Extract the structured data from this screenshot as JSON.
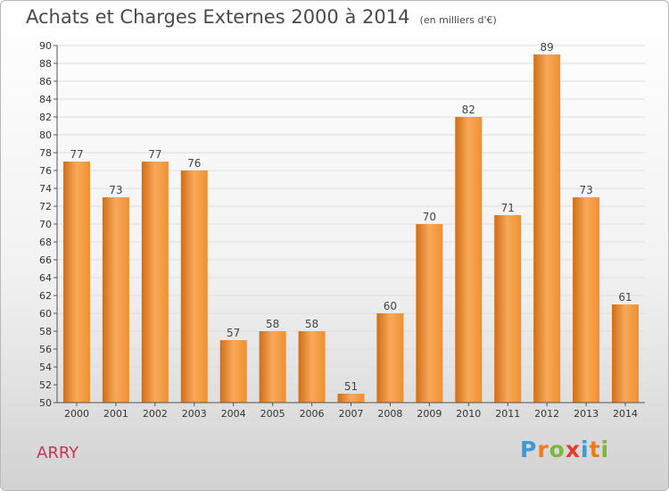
{
  "chart_data": {
    "type": "bar",
    "title": "Achats et Charges Externes 2000 à 2014",
    "subtitle": "(en milliers d'€)",
    "categories": [
      "2000",
      "2001",
      "2002",
      "2003",
      "2004",
      "2005",
      "2006",
      "2007",
      "2008",
      "2009",
      "2010",
      "2011",
      "2012",
      "2013",
      "2014"
    ],
    "values": [
      77,
      73,
      77,
      76,
      57,
      58,
      58,
      51,
      60,
      70,
      82,
      71,
      89,
      73,
      61
    ],
    "ylim": [
      50,
      90
    ],
    "ytick_step": 2,
    "grid": true,
    "bar_color": "#f0902e",
    "bar_color_light": "#f8a95a",
    "bar_color_dark": "#d06e17"
  },
  "commune": "ARRY",
  "logo": {
    "letters": [
      "P",
      "r",
      "o",
      "x",
      "i",
      "t",
      "i"
    ],
    "colors": [
      "#3a9ad9",
      "#f07b1c",
      "#7ab83a",
      "#e03b2f",
      "#3a9ad9",
      "#f07b1c",
      "#7ab83a"
    ]
  }
}
